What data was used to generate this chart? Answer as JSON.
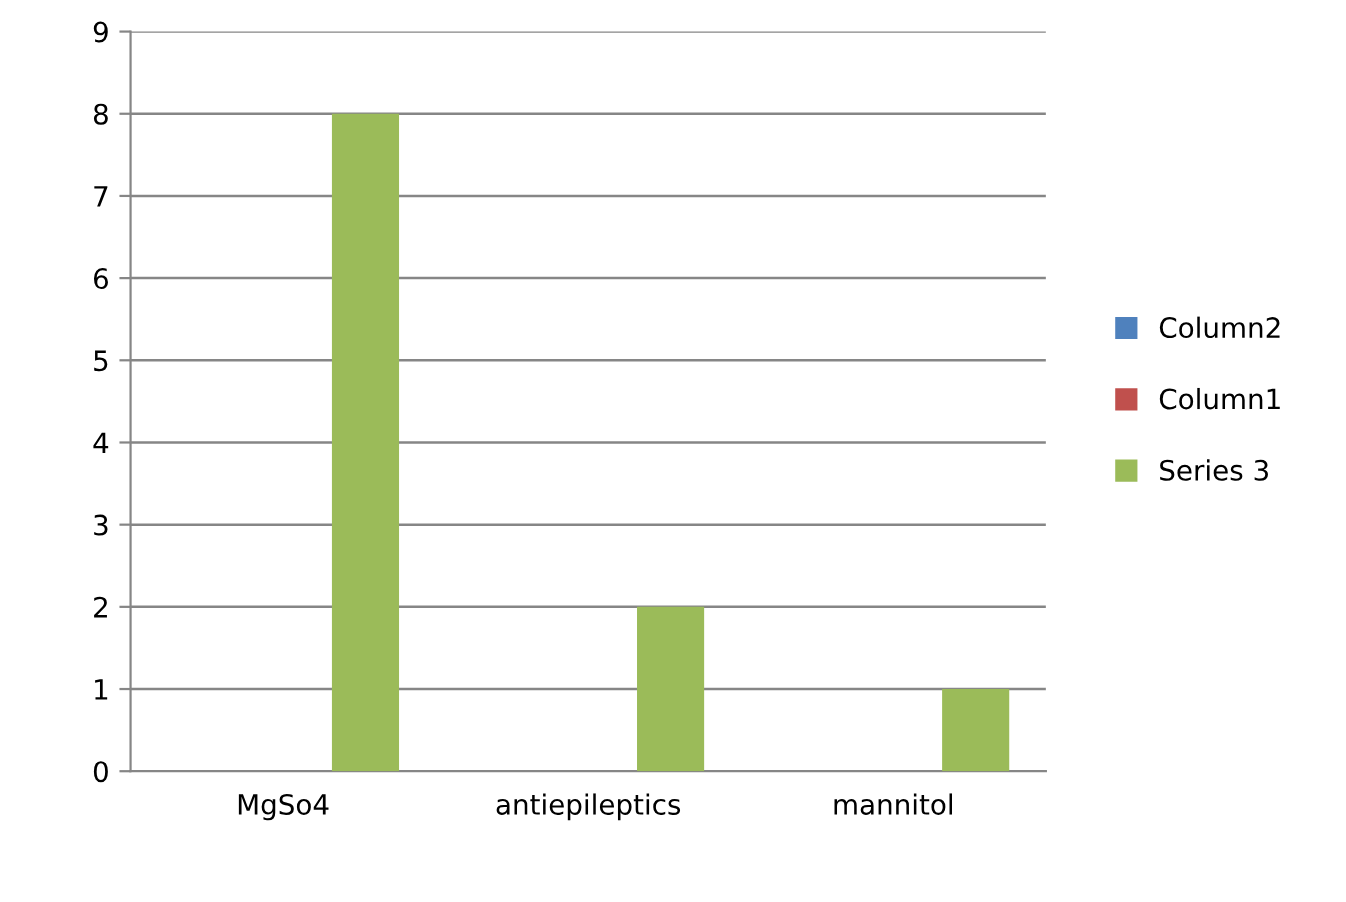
{
  "chart_data": {
    "type": "bar",
    "categories": [
      "MgSo4",
      "antiepileptics",
      "mannitol"
    ],
    "series": [
      {
        "name": "Column2",
        "color": "#4f81bd",
        "values": [
          0,
          0,
          0
        ]
      },
      {
        "name": "Column1",
        "color": "#c0504d",
        "values": [
          0,
          0,
          0
        ]
      },
      {
        "name": "Series 3",
        "color": "#9bbb59",
        "values": [
          8,
          2,
          1
        ]
      }
    ],
    "ylim": [
      0,
      9
    ],
    "yticks": [
      0,
      1,
      2,
      3,
      4,
      5,
      6,
      7,
      8,
      9
    ],
    "grid": "y",
    "legend": "right"
  }
}
